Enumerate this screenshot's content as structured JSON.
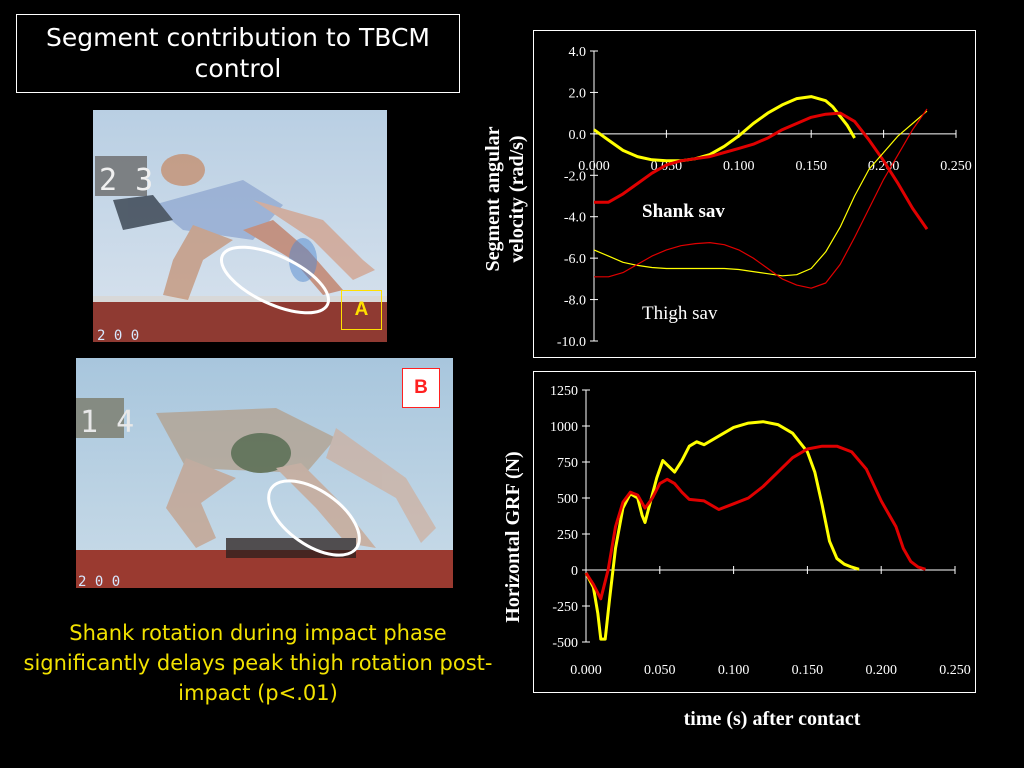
{
  "slide": {
    "title": "Segment contribution to TBCM control",
    "caption": "Shank rotation during impact phase significantly delays  peak thigh rotation post-impact (p<.01)",
    "photo_a_label": "A",
    "photo_b_label": "B",
    "photo_a_scoreboard": "2 3",
    "photo_b_scoreboard": "1 4",
    "photo_a_footer": "2 0 0",
    "photo_b_footer": "2 0 0"
  },
  "colors": {
    "yellow": "#ffff00",
    "red": "#e00000",
    "label_a": "#ffe000",
    "label_b": "#ff2020"
  },
  "chart_data": [
    {
      "type": "line",
      "ylabel_line1": "Segment angular",
      "ylabel_line2": "velocity (rad/s)",
      "xlim": [
        0,
        0.25
      ],
      "ylim": [
        -10,
        4
      ],
      "x_ticks": [
        "0.000",
        "0.050",
        "0.100",
        "0.150",
        "0.200",
        "0.250"
      ],
      "y_ticks": [
        "4.0",
        "2.0",
        "0.0",
        "-2.0",
        "-4.0",
        "-6.0",
        "-8.0",
        "-10.0"
      ],
      "annotations": [
        "Shank sav",
        "Thigh sav"
      ],
      "series": [
        {
          "color": "yellow",
          "width": "thick",
          "points": [
            [
              0,
              0.2
            ],
            [
              0.01,
              -0.3
            ],
            [
              0.02,
              -0.8
            ],
            [
              0.03,
              -1.1
            ],
            [
              0.04,
              -1.25
            ],
            [
              0.05,
              -1.3
            ],
            [
              0.06,
              -1.3
            ],
            [
              0.07,
              -1.2
            ],
            [
              0.08,
              -1.0
            ],
            [
              0.09,
              -0.6
            ],
            [
              0.1,
              -0.1
            ],
            [
              0.11,
              0.5
            ],
            [
              0.12,
              1.0
            ],
            [
              0.13,
              1.4
            ],
            [
              0.14,
              1.7
            ],
            [
              0.15,
              1.8
            ],
            [
              0.16,
              1.6
            ],
            [
              0.165,
              1.3
            ],
            [
              0.175,
              0.4
            ],
            [
              0.18,
              -0.2
            ]
          ]
        },
        {
          "color": "red",
          "width": "thick",
          "points": [
            [
              0,
              -3.3
            ],
            [
              0.01,
              -3.3
            ],
            [
              0.02,
              -2.9
            ],
            [
              0.03,
              -2.4
            ],
            [
              0.04,
              -1.9
            ],
            [
              0.05,
              -1.5
            ],
            [
              0.06,
              -1.3
            ],
            [
              0.07,
              -1.2
            ],
            [
              0.08,
              -1.1
            ],
            [
              0.09,
              -0.9
            ],
            [
              0.1,
              -0.7
            ],
            [
              0.11,
              -0.5
            ],
            [
              0.12,
              -0.2
            ],
            [
              0.13,
              0.2
            ],
            [
              0.14,
              0.5
            ],
            [
              0.15,
              0.8
            ],
            [
              0.16,
              0.95
            ],
            [
              0.17,
              1.0
            ],
            [
              0.18,
              0.6
            ],
            [
              0.19,
              -0.3
            ],
            [
              0.2,
              -1.3
            ],
            [
              0.21,
              -2.4
            ],
            [
              0.22,
              -3.6
            ],
            [
              0.23,
              -4.6
            ]
          ]
        },
        {
          "color": "yellow",
          "width": "thin",
          "points": [
            [
              0,
              -5.6
            ],
            [
              0.01,
              -5.9
            ],
            [
              0.02,
              -6.2
            ],
            [
              0.03,
              -6.35
            ],
            [
              0.04,
              -6.45
            ],
            [
              0.05,
              -6.5
            ],
            [
              0.06,
              -6.5
            ],
            [
              0.07,
              -6.5
            ],
            [
              0.08,
              -6.5
            ],
            [
              0.09,
              -6.5
            ],
            [
              0.1,
              -6.55
            ],
            [
              0.11,
              -6.65
            ],
            [
              0.12,
              -6.75
            ],
            [
              0.13,
              -6.85
            ],
            [
              0.14,
              -6.8
            ],
            [
              0.15,
              -6.5
            ],
            [
              0.16,
              -5.7
            ],
            [
              0.17,
              -4.5
            ],
            [
              0.18,
              -3.0
            ],
            [
              0.19,
              -1.7
            ],
            [
              0.2,
              -0.9
            ],
            [
              0.21,
              -0.1
            ],
            [
              0.22,
              0.5
            ],
            [
              0.23,
              1.1
            ]
          ]
        },
        {
          "color": "red",
          "width": "thin",
          "points": [
            [
              0,
              -6.9
            ],
            [
              0.01,
              -6.9
            ],
            [
              0.02,
              -6.7
            ],
            [
              0.03,
              -6.3
            ],
            [
              0.04,
              -5.9
            ],
            [
              0.05,
              -5.6
            ],
            [
              0.06,
              -5.4
            ],
            [
              0.07,
              -5.3
            ],
            [
              0.08,
              -5.25
            ],
            [
              0.09,
              -5.35
            ],
            [
              0.1,
              -5.6
            ],
            [
              0.11,
              -6.0
            ],
            [
              0.12,
              -6.5
            ],
            [
              0.13,
              -7.0
            ],
            [
              0.14,
              -7.3
            ],
            [
              0.15,
              -7.45
            ],
            [
              0.16,
              -7.2
            ],
            [
              0.17,
              -6.3
            ],
            [
              0.18,
              -5.0
            ],
            [
              0.19,
              -3.6
            ],
            [
              0.2,
              -2.2
            ],
            [
              0.21,
              -1.0
            ],
            [
              0.22,
              0.2
            ],
            [
              0.23,
              1.2
            ]
          ]
        }
      ]
    },
    {
      "type": "line",
      "ylabel": "Horizontal GRF (N)",
      "xlabel": "time (s) after contact",
      "xlim": [
        0,
        0.25
      ],
      "ylim": [
        -500,
        1250
      ],
      "x_ticks": [
        "0.000",
        "0.050",
        "0.100",
        "0.150",
        "0.200",
        "0.250"
      ],
      "y_ticks": [
        "1250",
        "1000",
        "750",
        "500",
        "250",
        "0",
        "-250",
        "-500"
      ],
      "series": [
        {
          "color": "yellow",
          "width": "thick",
          "points": [
            [
              0,
              -20
            ],
            [
              0.005,
              -120
            ],
            [
              0.008,
              -300
            ],
            [
              0.01,
              -480
            ],
            [
              0.013,
              -480
            ],
            [
              0.016,
              -200
            ],
            [
              0.02,
              150
            ],
            [
              0.025,
              430
            ],
            [
              0.03,
              530
            ],
            [
              0.035,
              500
            ],
            [
              0.038,
              380
            ],
            [
              0.04,
              330
            ],
            [
              0.043,
              450
            ],
            [
              0.048,
              640
            ],
            [
              0.052,
              760
            ],
            [
              0.056,
              720
            ],
            [
              0.06,
              680
            ],
            [
              0.065,
              760
            ],
            [
              0.07,
              860
            ],
            [
              0.075,
              890
            ],
            [
              0.08,
              870
            ],
            [
              0.09,
              930
            ],
            [
              0.1,
              990
            ],
            [
              0.11,
              1020
            ],
            [
              0.12,
              1030
            ],
            [
              0.13,
              1010
            ],
            [
              0.14,
              950
            ],
            [
              0.15,
              820
            ],
            [
              0.155,
              680
            ],
            [
              0.16,
              450
            ],
            [
              0.165,
              200
            ],
            [
              0.17,
              80
            ],
            [
              0.175,
              40
            ],
            [
              0.18,
              20
            ],
            [
              0.185,
              5
            ]
          ]
        },
        {
          "color": "red",
          "width": "thick",
          "points": [
            [
              0,
              -20
            ],
            [
              0.005,
              -100
            ],
            [
              0.01,
              -200
            ],
            [
              0.015,
              0
            ],
            [
              0.02,
              300
            ],
            [
              0.025,
              470
            ],
            [
              0.03,
              540
            ],
            [
              0.035,
              520
            ],
            [
              0.04,
              430
            ],
            [
              0.045,
              500
            ],
            [
              0.05,
              600
            ],
            [
              0.055,
              630
            ],
            [
              0.06,
              600
            ],
            [
              0.065,
              540
            ],
            [
              0.07,
              490
            ],
            [
              0.08,
              480
            ],
            [
              0.09,
              420
            ],
            [
              0.1,
              460
            ],
            [
              0.11,
              500
            ],
            [
              0.12,
              580
            ],
            [
              0.13,
              680
            ],
            [
              0.14,
              780
            ],
            [
              0.15,
              840
            ],
            [
              0.16,
              860
            ],
            [
              0.17,
              860
            ],
            [
              0.18,
              820
            ],
            [
              0.19,
              700
            ],
            [
              0.2,
              480
            ],
            [
              0.21,
              300
            ],
            [
              0.215,
              150
            ],
            [
              0.22,
              60
            ],
            [
              0.225,
              20
            ],
            [
              0.23,
              5
            ]
          ]
        }
      ]
    }
  ]
}
